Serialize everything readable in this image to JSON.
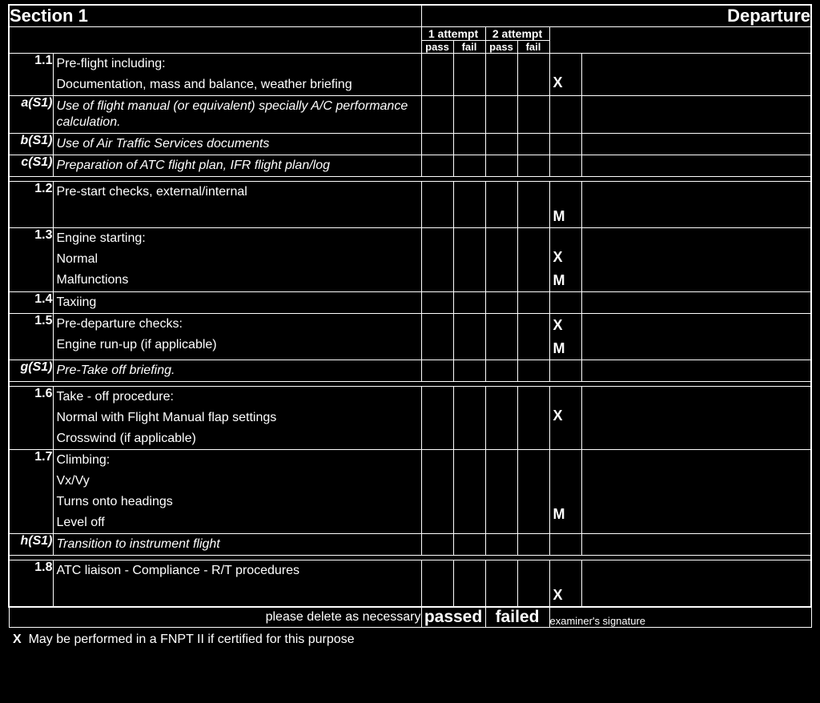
{
  "header": {
    "section_label": "Section 1",
    "section_name": "Departure",
    "attempt1": "1 attempt",
    "attempt2": "2 attempt",
    "pass": "pass",
    "fail": "fail"
  },
  "rows": [
    {
      "num": "1.1",
      "italic": false,
      "lines": [
        "Pre-flight including:",
        "Documentation, mass and balance, weather briefing"
      ],
      "marks": [
        "",
        "X"
      ]
    },
    {
      "num": "a(S1)",
      "italic": true,
      "lines": [
        "Use of flight manual (or equivalent) specially A/C performance calculation."
      ],
      "marks": [
        ""
      ]
    },
    {
      "num": "b(S1)",
      "italic": true,
      "lines": [
        "Use of Air Traffic Services documents"
      ],
      "marks": [
        ""
      ]
    },
    {
      "num": "c(S1)",
      "italic": true,
      "lines": [
        "Preparation of ATC flight plan, IFR flight plan/log"
      ],
      "marks": [
        ""
      ]
    },
    {
      "num": "1.2",
      "italic": false,
      "lines": [
        "Pre-start checks, external/internal"
      ],
      "marks": [
        "M"
      ],
      "markAlign": "bottom"
    },
    {
      "num": "1.3",
      "italic": false,
      "lines": [
        "Engine starting:",
        "Normal",
        "Malfunctions"
      ],
      "marks": [
        "",
        "X",
        "M"
      ]
    },
    {
      "num": "1.4",
      "italic": false,
      "lines": [
        "Taxiing"
      ],
      "marks": [
        ""
      ]
    },
    {
      "num": "1.5",
      "italic": false,
      "lines": [
        "Pre-departure checks:",
        "Engine run-up (if applicable)"
      ],
      "marks": [
        "X",
        "M"
      ]
    },
    {
      "num": "g(S1)",
      "italic": true,
      "lines": [
        "Pre-Take off briefing."
      ],
      "marks": [
        ""
      ]
    },
    {
      "num": "1.6",
      "italic": false,
      "lines": [
        "Take - off procedure:",
        "Normal with Flight Manual flap settings",
        "Crosswind (if applicable)"
      ],
      "marks": [
        "",
        "X",
        ""
      ]
    },
    {
      "num": "1.7",
      "italic": false,
      "lines": [
        "Climbing:",
        "Vx/Vy",
        "Turns onto headings",
        "Level off"
      ],
      "marks": [
        "",
        "",
        "",
        "M"
      ]
    },
    {
      "num": "h(S1)",
      "italic": true,
      "lines": [
        "Transition to instrument flight"
      ],
      "marks": [
        ""
      ]
    },
    {
      "num": "1.8",
      "italic": false,
      "lines": [
        "ATC liaison - Compliance - R/T procedures"
      ],
      "marks": [
        "X"
      ],
      "markAlign": "bottom"
    }
  ],
  "groups": [
    [
      0,
      1,
      2,
      3
    ],
    [
      4,
      5,
      6,
      7,
      8
    ],
    [
      9,
      10,
      11
    ],
    [
      12
    ]
  ],
  "footer": {
    "delete_note": "please delete as necessary",
    "passed": "passed",
    "failed": "failed",
    "signature_label": "examiner's signature",
    "footnote_mark": "X",
    "footnote_text": "May be performed in a FNPT II if certified for this purpose"
  },
  "style": {
    "bg": "#000000",
    "fg": "#ffffff",
    "font_body": 16,
    "font_header": 22
  }
}
